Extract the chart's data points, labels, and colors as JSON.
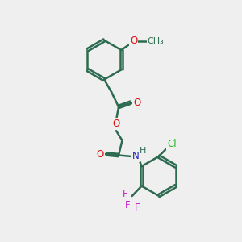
{
  "background_color": "#efefef",
  "bond_color": "#2d6b50",
  "bond_width": 1.8,
  "atom_colors": {
    "O": "#dd1111",
    "N": "#2222bb",
    "Cl": "#22bb22",
    "F": "#cc22cc"
  },
  "font_size": 8.5,
  "fig_size": [
    3.0,
    3.0
  ],
  "dpi": 100
}
